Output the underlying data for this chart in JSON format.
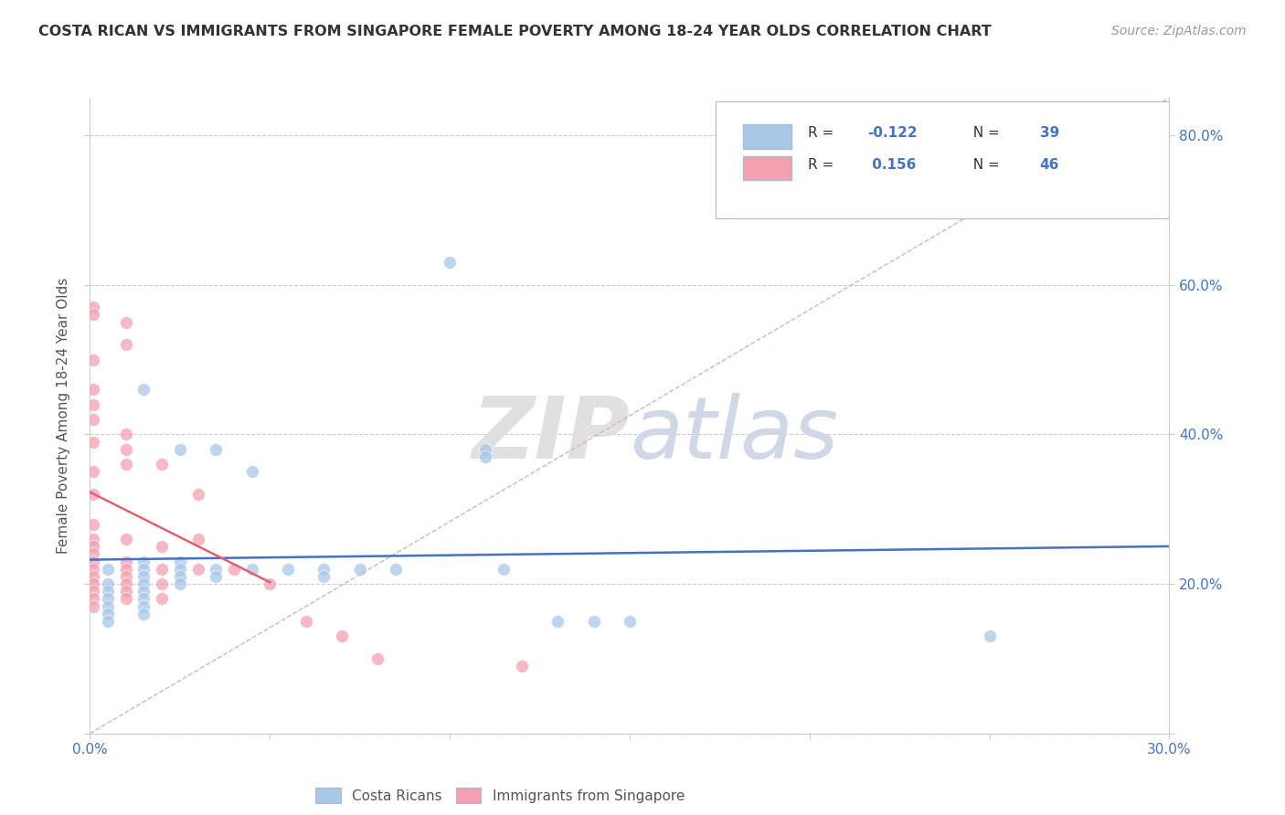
{
  "title": "COSTA RICAN VS IMMIGRANTS FROM SINGAPORE FEMALE POVERTY AMONG 18-24 YEAR OLDS CORRELATION CHART",
  "source": "Source: ZipAtlas.com",
  "ylabel": "Female Poverty Among 18-24 Year Olds",
  "xlim": [
    0.0,
    0.3
  ],
  "ylim": [
    0.0,
    0.85
  ],
  "xtick_positions": [
    0.0,
    0.05,
    0.1,
    0.15,
    0.2,
    0.25,
    0.3
  ],
  "xtick_labels": [
    "0.0%",
    "",
    "",
    "",
    "",
    "",
    "30.0%"
  ],
  "ytick_positions": [
    0.0,
    0.2,
    0.4,
    0.6,
    0.8
  ],
  "ytick_labels_right": [
    "",
    "20.0%",
    "40.0%",
    "60.0%",
    "80.0%"
  ],
  "watermark_zip": "ZIP",
  "watermark_atlas": "atlas",
  "blue_scatter_color": "#a8c8e8",
  "pink_scatter_color": "#f4a0b0",
  "blue_line_color": "#4472c4",
  "pink_line_color": "#e06070",
  "diag_line_color": "#e0b0b8",
  "grid_color": "#cccccc",
  "legend_box_color": "#ccddee",
  "r_label_color": "#4472c4",
  "ytick_color": "#4472c4",
  "xtick_color": "#4472c4",
  "blue_scatter": [
    [
      0.005,
      0.22
    ],
    [
      0.005,
      0.2
    ],
    [
      0.005,
      0.19
    ],
    [
      0.005,
      0.18
    ],
    [
      0.005,
      0.17
    ],
    [
      0.005,
      0.16
    ],
    [
      0.005,
      0.15
    ],
    [
      0.015,
      0.46
    ],
    [
      0.015,
      0.23
    ],
    [
      0.015,
      0.22
    ],
    [
      0.015,
      0.21
    ],
    [
      0.015,
      0.2
    ],
    [
      0.015,
      0.19
    ],
    [
      0.015,
      0.18
    ],
    [
      0.015,
      0.17
    ],
    [
      0.015,
      0.16
    ],
    [
      0.025,
      0.38
    ],
    [
      0.025,
      0.23
    ],
    [
      0.025,
      0.22
    ],
    [
      0.025,
      0.21
    ],
    [
      0.025,
      0.2
    ],
    [
      0.035,
      0.38
    ],
    [
      0.035,
      0.22
    ],
    [
      0.035,
      0.21
    ],
    [
      0.045,
      0.35
    ],
    [
      0.045,
      0.22
    ],
    [
      0.055,
      0.22
    ],
    [
      0.065,
      0.22
    ],
    [
      0.065,
      0.21
    ],
    [
      0.075,
      0.22
    ],
    [
      0.085,
      0.22
    ],
    [
      0.1,
      0.63
    ],
    [
      0.11,
      0.38
    ],
    [
      0.11,
      0.37
    ],
    [
      0.115,
      0.22
    ],
    [
      0.13,
      0.15
    ],
    [
      0.14,
      0.15
    ],
    [
      0.15,
      0.15
    ],
    [
      0.25,
      0.13
    ]
  ],
  "pink_scatter": [
    [
      0.001,
      0.57
    ],
    [
      0.001,
      0.56
    ],
    [
      0.001,
      0.5
    ],
    [
      0.001,
      0.46
    ],
    [
      0.001,
      0.44
    ],
    [
      0.001,
      0.42
    ],
    [
      0.001,
      0.39
    ],
    [
      0.001,
      0.35
    ],
    [
      0.001,
      0.32
    ],
    [
      0.001,
      0.28
    ],
    [
      0.001,
      0.26
    ],
    [
      0.001,
      0.25
    ],
    [
      0.001,
      0.24
    ],
    [
      0.001,
      0.23
    ],
    [
      0.001,
      0.22
    ],
    [
      0.001,
      0.21
    ],
    [
      0.001,
      0.2
    ],
    [
      0.001,
      0.19
    ],
    [
      0.001,
      0.18
    ],
    [
      0.001,
      0.17
    ],
    [
      0.01,
      0.55
    ],
    [
      0.01,
      0.52
    ],
    [
      0.01,
      0.4
    ],
    [
      0.01,
      0.38
    ],
    [
      0.01,
      0.36
    ],
    [
      0.01,
      0.26
    ],
    [
      0.01,
      0.23
    ],
    [
      0.01,
      0.22
    ],
    [
      0.01,
      0.21
    ],
    [
      0.01,
      0.2
    ],
    [
      0.01,
      0.19
    ],
    [
      0.01,
      0.18
    ],
    [
      0.02,
      0.36
    ],
    [
      0.02,
      0.25
    ],
    [
      0.02,
      0.22
    ],
    [
      0.02,
      0.2
    ],
    [
      0.02,
      0.18
    ],
    [
      0.03,
      0.32
    ],
    [
      0.03,
      0.26
    ],
    [
      0.03,
      0.22
    ],
    [
      0.04,
      0.22
    ],
    [
      0.05,
      0.2
    ],
    [
      0.06,
      0.15
    ],
    [
      0.07,
      0.13
    ],
    [
      0.08,
      0.1
    ],
    [
      0.12,
      0.09
    ]
  ],
  "blue_trend_x": [
    0.0,
    0.3
  ],
  "pink_trend_x": [
    0.0,
    0.05
  ]
}
